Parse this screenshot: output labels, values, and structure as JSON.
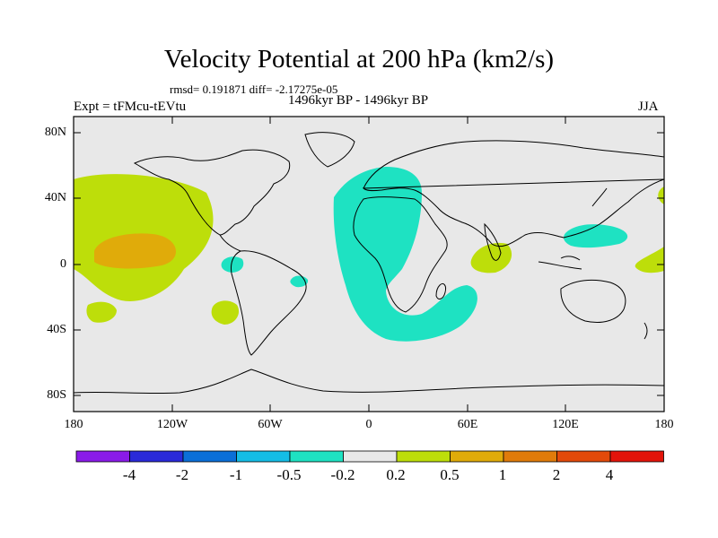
{
  "title": "Velocity Potential at 200 hPa (km2/s)",
  "stats": "rmsd= 0.191871 diff= -2.17275e-05",
  "expt": "Expt = tFMcu-tEVtu",
  "period": "1496kyr BP - 1496kyr BP",
  "season": "JJA",
  "y_ticks": [
    "80N",
    "40N",
    "0",
    "40S",
    "80S"
  ],
  "x_ticks": [
    "180",
    "120W",
    "60W",
    "0",
    "60E",
    "120E",
    "180"
  ],
  "colorbar": {
    "labels": [
      "-4",
      "-2",
      "-1",
      "-0.5",
      "-0.2",
      "0.2",
      "0.5",
      "1",
      "2",
      "4"
    ],
    "colors": [
      "#8a1be8",
      "#2a2ad9",
      "#0b6fd8",
      "#15bde6",
      "#1ee2c2",
      "#e8e8e8",
      "#bdde0a",
      "#e0ab0a",
      "#e07b0a",
      "#e34a0a",
      "#e3140a"
    ]
  },
  "map_colors": {
    "background": "#e8e8e8",
    "neg_0_2_to_0_5": "#1ee2c2",
    "pos_0_2_to_0_5": "#bdde0a",
    "pos_0_5_to_1": "#e0ab0a"
  }
}
